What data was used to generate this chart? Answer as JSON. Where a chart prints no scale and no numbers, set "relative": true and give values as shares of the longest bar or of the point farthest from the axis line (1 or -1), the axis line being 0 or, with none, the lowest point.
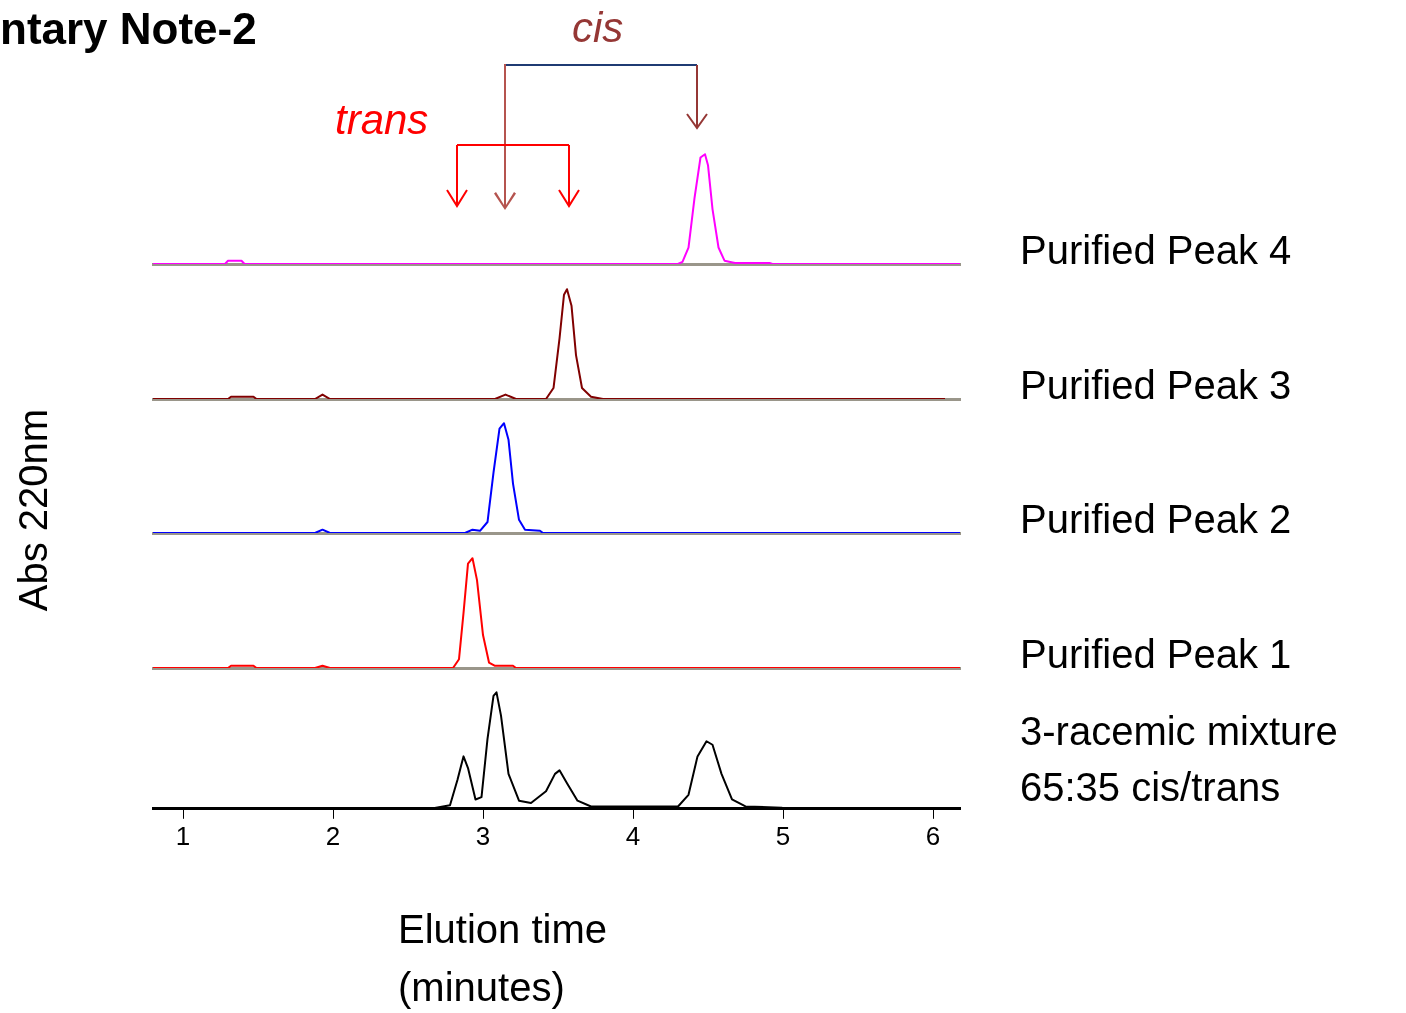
{
  "chart_data": [
    {
      "type": "line",
      "title": "ntary Note-2",
      "annotations": [
        "cis",
        "trans"
      ],
      "relative": true,
      "xlim": [
        0.8,
        6.18
      ],
      "tick_labels": false,
      "x": [
        0.8,
        1.28,
        1.3,
        1.39,
        1.41,
        4.3,
        4.33,
        4.37,
        4.41,
        4.45,
        4.48,
        4.5,
        4.53,
        4.57,
        4.61,
        4.68,
        4.91,
        4.93,
        6.18
      ],
      "series": [
        {
          "name": "Purified Peak 4",
          "color": "#ff00ff",
          "values": [
            0,
            0,
            0.03,
            0.03,
            0,
            0,
            0.02,
            0.15,
            0.6,
            0.97,
            1.0,
            0.9,
            0.5,
            0.15,
            0.03,
            0.01,
            0.01,
            0,
            0
          ]
        }
      ]
    },
    {
      "type": "line",
      "relative": true,
      "xlim": [
        0.8,
        6.18
      ],
      "tick_labels": false,
      "x": [
        0.8,
        1.3,
        1.32,
        1.47,
        1.49,
        1.88,
        1.93,
        1.98,
        3.08,
        3.15,
        3.22,
        3.42,
        3.47,
        3.51,
        3.54,
        3.56,
        3.59,
        3.62,
        3.66,
        3.72,
        3.8,
        6.08
      ],
      "series": [
        {
          "name": "Purified Peak 3",
          "color": "#800000",
          "values": [
            0,
            0,
            0.02,
            0.02,
            0,
            0,
            0.04,
            0,
            0,
            0.04,
            0,
            0,
            0.1,
            0.55,
            0.95,
            1.0,
            0.85,
            0.4,
            0.1,
            0.02,
            0,
            0
          ]
        }
      ]
    },
    {
      "type": "line",
      "relative": true,
      "xlim": [
        0.8,
        6.18
      ],
      "tick_labels": false,
      "ylabel": "Abs 220nm",
      "x": [
        0.8,
        1.88,
        1.93,
        1.98,
        2.88,
        2.93,
        2.98,
        3.03,
        3.07,
        3.11,
        3.14,
        3.17,
        3.2,
        3.24,
        3.28,
        3.38,
        3.4,
        6.18
      ],
      "series": [
        {
          "name": "Purified Peak 2",
          "color": "#0000ff",
          "values": [
            0,
            0,
            0.03,
            0,
            0,
            0.03,
            0.02,
            0.1,
            0.55,
            0.95,
            1.0,
            0.85,
            0.45,
            0.12,
            0.03,
            0.02,
            0,
            0
          ]
        }
      ]
    },
    {
      "type": "line",
      "relative": true,
      "xlim": [
        0.8,
        6.18
      ],
      "tick_labels": false,
      "x": [
        0.8,
        1.3,
        1.32,
        1.47,
        1.49,
        1.88,
        1.93,
        1.98,
        2.8,
        2.84,
        2.87,
        2.9,
        2.93,
        2.96,
        3.0,
        3.04,
        3.08,
        3.2,
        3.22,
        6.18
      ],
      "series": [
        {
          "name": "Purified Peak 1",
          "color": "#ff0000",
          "values": [
            0,
            0,
            0.02,
            0.02,
            0,
            0,
            0.02,
            0,
            0,
            0.08,
            0.5,
            0.95,
            1.0,
            0.8,
            0.3,
            0.05,
            0.02,
            0.02,
            0,
            0
          ]
        }
      ]
    },
    {
      "type": "line",
      "relative": true,
      "xlim": [
        0.8,
        6.18
      ],
      "xticks": [
        1,
        2,
        3,
        4,
        5,
        6
      ],
      "tick_labels": "x",
      "xlabel": "Elution time (minutes)",
      "x": [
        0.8,
        2.65,
        2.78,
        2.83,
        2.87,
        2.9,
        2.95,
        2.99,
        3.03,
        3.07,
        3.09,
        3.12,
        3.17,
        3.24,
        3.32,
        3.42,
        3.48,
        3.51,
        3.56,
        3.63,
        3.72,
        4.3,
        4.37,
        4.43,
        4.49,
        4.53,
        4.59,
        4.66,
        4.75,
        4.99,
        5.0,
        6.18
      ],
      "series": [
        {
          "name": "3-racemic mixture 65:35 cis/trans",
          "color": "#000000",
          "values": [
            0,
            0,
            0.03,
            0.25,
            0.45,
            0.35,
            0.08,
            0.1,
            0.6,
            0.97,
            1.0,
            0.8,
            0.3,
            0.07,
            0.05,
            0.15,
            0.3,
            0.33,
            0.22,
            0.07,
            0.02,
            0.02,
            0.12,
            0.45,
            0.58,
            0.55,
            0.3,
            0.08,
            0.02,
            0.01,
            0,
            0
          ]
        }
      ]
    }
  ]
}
